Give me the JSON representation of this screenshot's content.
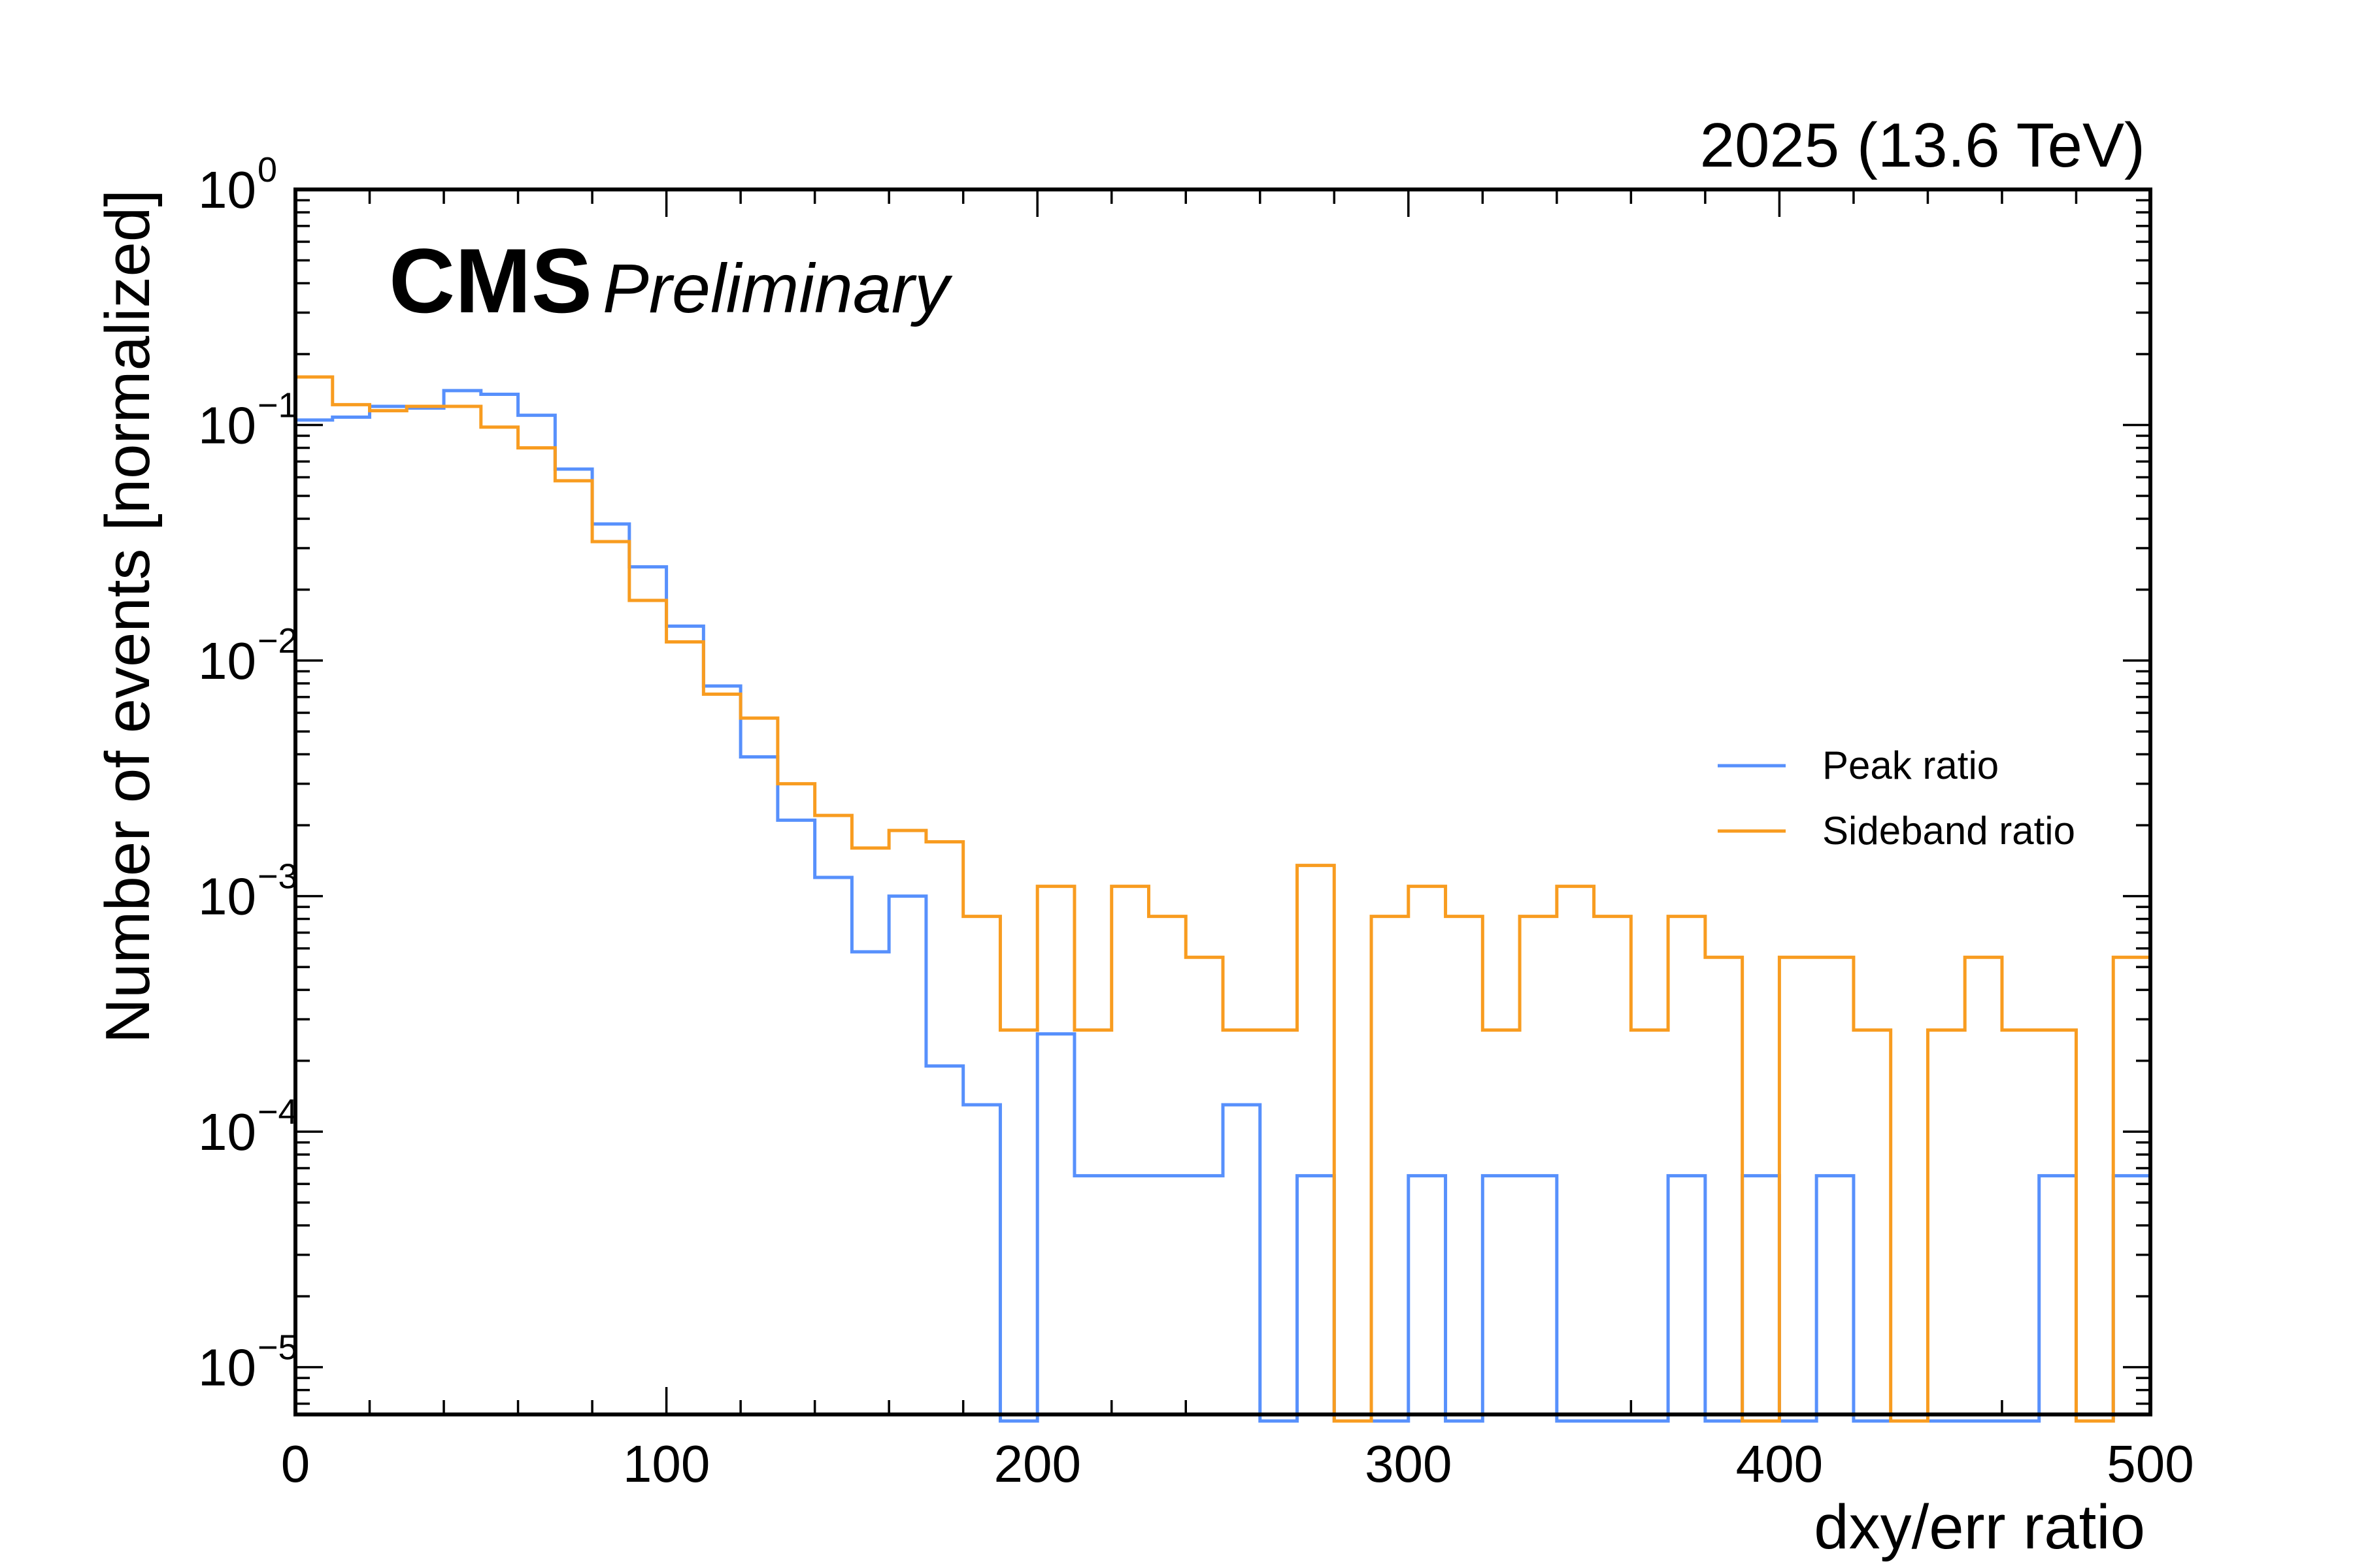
{
  "chart_data": {
    "type": "histogram",
    "experiment": "CMS",
    "status": "Preliminary",
    "lumi_label": "2025 (13.6 TeV)",
    "xlabel": "dxy/err ratio",
    "ylabel": "Number of events [normalized]",
    "x_range": [
      0,
      500
    ],
    "y_range": [
      6.3e-06,
      1
    ],
    "y_scale": "log",
    "grid": false,
    "legend_position": "right",
    "x_ticks": [
      {
        "value": 0,
        "label": "0"
      },
      {
        "value": 100,
        "label": "100"
      },
      {
        "value": 200,
        "label": "200"
      },
      {
        "value": 300,
        "label": "300"
      },
      {
        "value": 400,
        "label": "400"
      },
      {
        "value": 500,
        "label": "500"
      }
    ],
    "y_ticks": [
      {
        "value": 1,
        "base": "10",
        "exp": "0"
      },
      {
        "value": 0.1,
        "base": "10",
        "exp": "−1"
      },
      {
        "value": 0.01,
        "base": "10",
        "exp": "−2"
      },
      {
        "value": 0.001,
        "base": "10",
        "exp": "−3"
      },
      {
        "value": 0.0001,
        "base": "10",
        "exp": "−4"
      },
      {
        "value": 1e-05,
        "base": "10",
        "exp": "−5"
      }
    ],
    "bin_edges": [
      0,
      10,
      20,
      30,
      40,
      50,
      60,
      70,
      80,
      90,
      100,
      110,
      120,
      130,
      140,
      150,
      160,
      170,
      180,
      190,
      200,
      210,
      220,
      230,
      240,
      250,
      260,
      270,
      280,
      290,
      300,
      310,
      320,
      330,
      340,
      350,
      360,
      370,
      380,
      390,
      400,
      410,
      420,
      430,
      440,
      450,
      460,
      470,
      480,
      490,
      500
    ],
    "series": [
      {
        "name": "Peak ratio",
        "color": "#5790fc",
        "values": [
          0.105,
          0.108,
          0.12,
          0.118,
          0.14,
          0.135,
          0.11,
          0.065,
          0.038,
          0.025,
          0.014,
          0.0078,
          0.0039,
          0.0021,
          0.0012,
          0.00058,
          0.001,
          0.00019,
          0.00013,
          0,
          0.00026,
          6.5e-05,
          6.5e-05,
          6.5e-05,
          6.5e-05,
          0.00013,
          0,
          6.5e-05,
          0,
          0,
          6.5e-05,
          0,
          6.5e-05,
          6.5e-05,
          0,
          0,
          0,
          6.5e-05,
          0,
          6.5e-05,
          0,
          6.5e-05,
          0,
          0,
          0,
          0,
          0,
          6.5e-05,
          0,
          6.5e-05
        ]
      },
      {
        "name": "Sideband ratio",
        "color": "#f89c20",
        "values": [
          0.16,
          0.122,
          0.115,
          0.12,
          0.12,
          0.098,
          0.08,
          0.058,
          0.032,
          0.018,
          0.012,
          0.0072,
          0.0057,
          0.003,
          0.0022,
          0.0016,
          0.0019,
          0.0017,
          0.00082,
          0.00027,
          0.0011,
          0.00027,
          0.0011,
          0.00082,
          0.00055,
          0.00027,
          0.00027,
          0.00135,
          0,
          0.00082,
          0.0011,
          0.00082,
          0.00027,
          0.00082,
          0.0011,
          0.00082,
          0.00027,
          0.00082,
          0.00055,
          0,
          0.00055,
          0.00055,
          0.00027,
          0,
          0.00027,
          0.00055,
          0.00027,
          0.00027,
          0,
          0.00055
        ]
      }
    ]
  }
}
